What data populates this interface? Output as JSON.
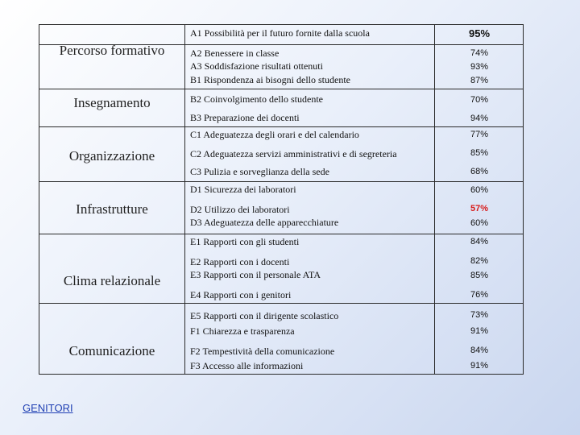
{
  "categories": [
    "Percorso formativo",
    "Insegnamento",
    "Organizzazione",
    "Infrastrutture",
    "Clima relazionale",
    "Comunicazione"
  ],
  "rows": [
    {
      "item": "A1 Possibilità per il futuro fornite dalla scuola",
      "value": "95%"
    },
    {
      "item": "A2 Benessere in classe",
      "value": "74%"
    },
    {
      "item": "A3 Soddisfazione risultati ottenuti",
      "value": "93%"
    },
    {
      "item": "B1 Rispondenza ai bisogni dello studente",
      "value": "87%"
    },
    {
      "item": "B2 Coinvolgimento dello studente",
      "value": "70%"
    },
    {
      "item": "B3 Preparazione dei docenti",
      "value": "94%"
    },
    {
      "item": "C1 Adeguatezza degli orari e del calendario",
      "value": "77%"
    },
    {
      "item": "C2 Adeguatezza servizi amministrativi e di segreteria",
      "value": "85%"
    },
    {
      "item": "C3 Pulizia e sorveglianza della sede",
      "value": "68%"
    },
    {
      "item": "D1 Sicurezza dei laboratori",
      "value": "60%"
    },
    {
      "item": "D2 Utilizzo dei laboratori",
      "value": "57%",
      "value_color": "#d81b1b"
    },
    {
      "item": "D3 Adeguatezza delle apparecchiature",
      "value": "60%"
    },
    {
      "item": "E1 Rapporti con gli studenti",
      "value": "84%"
    },
    {
      "item": "E2 Rapporti con i docenti",
      "value": "82%"
    },
    {
      "item": "E3 Rapporti con il personale ATA",
      "value": "85%"
    },
    {
      "item": "E4 Rapporti con i genitori",
      "value": "76%"
    },
    {
      "item": "E5 Rapporti con il dirigente scolastico",
      "value": "73%"
    },
    {
      "item": "F1 Chiarezza e trasparenza",
      "value": "91%"
    },
    {
      "item": "F2 Tempestività della comunicazione",
      "value": "84%"
    },
    {
      "item": "F3 Accesso alle informazioni",
      "value": "91%"
    }
  ],
  "footer_link": "GENITORI"
}
